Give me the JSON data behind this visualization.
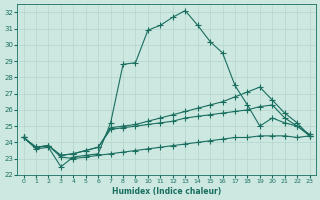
{
  "xlabel": "Humidex (Indice chaleur)",
  "bg_color": "#cce8e0",
  "grid_color": "#b8d8d0",
  "line_color": "#1a6e60",
  "xlim": [
    -0.5,
    23.5
  ],
  "ylim": [
    22,
    32.5
  ],
  "yticks": [
    22,
    23,
    24,
    25,
    26,
    27,
    28,
    29,
    30,
    31,
    32
  ],
  "xticks": [
    0,
    1,
    2,
    3,
    4,
    5,
    6,
    7,
    8,
    9,
    10,
    11,
    12,
    13,
    14,
    15,
    16,
    17,
    18,
    19,
    20,
    21,
    22,
    23
  ],
  "line1_x": [
    0,
    1,
    2,
    3,
    4,
    5,
    6,
    7,
    8,
    9,
    10,
    11,
    12,
    13,
    14,
    15,
    16,
    17,
    18,
    19,
    20,
    21,
    22,
    23
  ],
  "line1_y": [
    24.3,
    23.6,
    23.7,
    22.5,
    23.1,
    23.2,
    23.3,
    25.2,
    28.8,
    28.9,
    30.9,
    31.2,
    31.7,
    32.1,
    31.2,
    30.2,
    29.5,
    27.5,
    26.3,
    25.0,
    25.5,
    25.2,
    25.0,
    24.5
  ],
  "line2_x": [
    0,
    1,
    2,
    3,
    4,
    5,
    6,
    7,
    8,
    9,
    10,
    11,
    12,
    13,
    14,
    15,
    16,
    17,
    18,
    19,
    20,
    21,
    22,
    23
  ],
  "line2_y": [
    24.3,
    23.7,
    23.8,
    23.2,
    23.3,
    23.5,
    23.7,
    24.9,
    25.0,
    25.1,
    25.3,
    25.5,
    25.7,
    25.9,
    26.1,
    26.3,
    26.5,
    26.8,
    27.1,
    27.4,
    26.6,
    25.8,
    25.2,
    24.4
  ],
  "line3_x": [
    0,
    1,
    2,
    3,
    4,
    5,
    6,
    7,
    8,
    9,
    10,
    11,
    12,
    13,
    14,
    15,
    16,
    17,
    18,
    19,
    20,
    21,
    22,
    23
  ],
  "line3_y": [
    24.3,
    23.7,
    23.8,
    23.2,
    23.3,
    23.5,
    23.7,
    24.8,
    24.9,
    25.0,
    25.1,
    25.2,
    25.3,
    25.5,
    25.6,
    25.7,
    25.8,
    25.9,
    26.0,
    26.2,
    26.3,
    25.5,
    25.0,
    24.4
  ],
  "line4_x": [
    0,
    1,
    2,
    3,
    4,
    5,
    6,
    7,
    8,
    9,
    10,
    11,
    12,
    13,
    14,
    15,
    16,
    17,
    18,
    19,
    20,
    21,
    22,
    23
  ],
  "line4_y": [
    24.3,
    23.7,
    23.8,
    23.1,
    23.0,
    23.1,
    23.2,
    23.3,
    23.4,
    23.5,
    23.6,
    23.7,
    23.8,
    23.9,
    24.0,
    24.1,
    24.2,
    24.3,
    24.3,
    24.4,
    24.4,
    24.4,
    24.3,
    24.4
  ]
}
